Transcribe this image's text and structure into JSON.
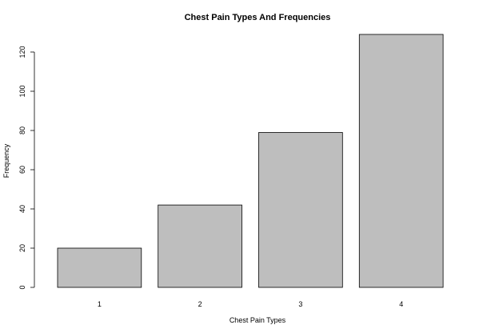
{
  "chart_data": {
    "type": "bar",
    "title": "Chest Pain Types And Frequencies",
    "xlabel": "Chest Pain Types",
    "ylabel": "Frequency",
    "categories": [
      "1",
      "2",
      "3",
      "4"
    ],
    "values": [
      20,
      42,
      79,
      129
    ],
    "ylim": [
      0,
      129
    ],
    "yticks": [
      0,
      20,
      40,
      60,
      80,
      100,
      120
    ],
    "grid": false,
    "legend": "none",
    "colors": {
      "bar_fill": "#bebebe",
      "bar_stroke": "#000000",
      "axis": "#000000",
      "text": "#000000",
      "background": "#ffffff"
    }
  }
}
